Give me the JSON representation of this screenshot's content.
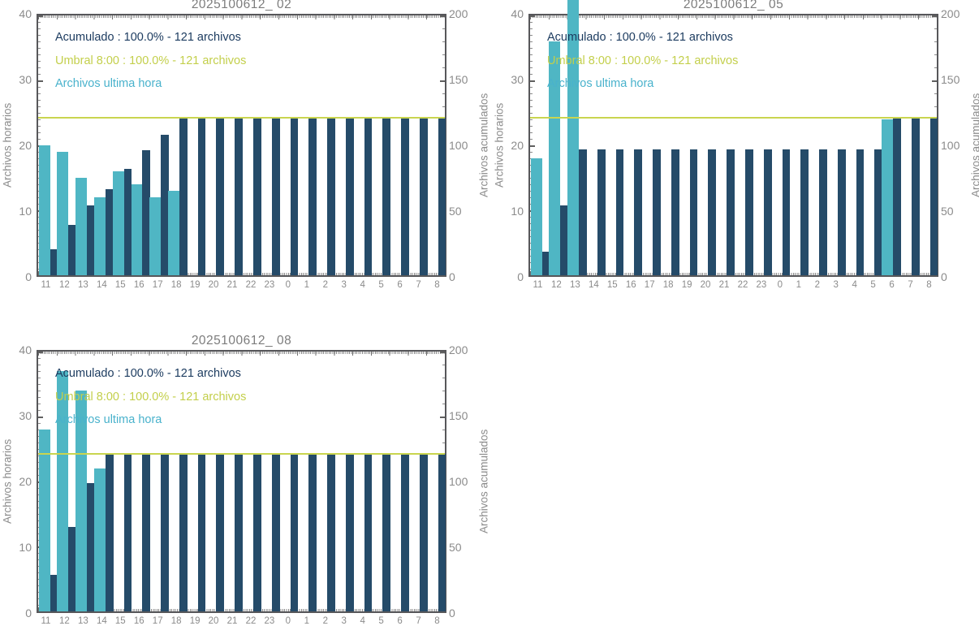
{
  "axis": {
    "x_categories": [
      "11",
      "12",
      "13",
      "14",
      "15",
      "16",
      "17",
      "18",
      "19",
      "20",
      "21",
      "22",
      "23",
      "0",
      "1",
      "2",
      "3",
      "4",
      "5",
      "6",
      "7",
      "8"
    ],
    "left_ticks": [
      "40",
      "30",
      "20",
      "10",
      "0"
    ],
    "right_ticks": [
      "200",
      "150",
      "100",
      "50",
      "0"
    ],
    "left_label": "Archivos horarios",
    "right_label": "Archivos acumulados"
  },
  "colors": {
    "hourly_bar": "#4fb6c4",
    "accumulated_bar": "#254b69",
    "threshold_line": "#c9d54f",
    "legend_acumulado_text": "#1d3c60",
    "legend_umbral_text": "#c3cf4b",
    "legend_ultima_text": "#49b2cc",
    "axis_text": "#8b8b8b",
    "title_text": "#7c7c7c"
  },
  "chart_data": [
    {
      "type": "bar",
      "title": "2025100612_ 02",
      "categories": [
        "11",
        "12",
        "13",
        "14",
        "15",
        "16",
        "17",
        "18",
        "19",
        "20",
        "21",
        "22",
        "23",
        "0",
        "1",
        "2",
        "3",
        "4",
        "5",
        "6",
        "7",
        "8"
      ],
      "ylabel_left": "Archivos horarios",
      "ylabel_right": "Archivos acumulados",
      "ylim_left": [
        0,
        40
      ],
      "ylim_right": [
        0,
        200
      ],
      "series": [
        {
          "name": "Archivos ultima hora",
          "axis": "left",
          "color": "#4fb6c4",
          "values": [
            20,
            19,
            15,
            12,
            16,
            14,
            12,
            13,
            0,
            0,
            0,
            0,
            0,
            0,
            0,
            0,
            0,
            0,
            0,
            0,
            0,
            0
          ]
        },
        {
          "name": "Acumulado",
          "axis": "right",
          "color": "#254b69",
          "values": [
            20,
            39,
            54,
            66,
            82,
            96,
            108,
            121,
            121,
            121,
            121,
            121,
            121,
            121,
            121,
            121,
            121,
            121,
            121,
            121,
            121,
            121
          ]
        }
      ],
      "threshold": {
        "name": "Umbral 8:00",
        "value": 121,
        "color": "#c9d54f"
      },
      "legend": [
        {
          "label": "Acumulado : 100.0% - 121 archivos",
          "color": "#1d3c60"
        },
        {
          "label": "Umbral 8:00 : 100.0% - 121 archivos",
          "color": "#c3cf4b"
        },
        {
          "label": "Archivos ultima hora",
          "color": "#49b2cc"
        }
      ]
    },
    {
      "type": "bar",
      "title": "2025100612_ 05",
      "categories": [
        "11",
        "12",
        "13",
        "14",
        "15",
        "16",
        "17",
        "18",
        "19",
        "20",
        "21",
        "22",
        "23",
        "0",
        "1",
        "2",
        "3",
        "4",
        "5",
        "6",
        "7",
        "8"
      ],
      "ylabel_left": "Archivos horarios",
      "ylabel_right": "Archivos acumulados",
      "ylim_left": [
        0,
        40
      ],
      "ylim_right": [
        0,
        200
      ],
      "series": [
        {
          "name": "Archivos ultima hora",
          "axis": "left",
          "color": "#4fb6c4",
          "values": [
            18,
            36,
            43,
            0,
            0,
            0,
            0,
            0,
            0,
            0,
            0,
            0,
            0,
            0,
            0,
            0,
            0,
            0,
            0,
            24,
            0,
            0
          ]
        },
        {
          "name": "Acumulado",
          "axis": "right",
          "color": "#254b69",
          "values": [
            18,
            54,
            97,
            97,
            97,
            97,
            97,
            97,
            97,
            97,
            97,
            97,
            97,
            97,
            97,
            97,
            97,
            97,
            97,
            121,
            121,
            121
          ]
        }
      ],
      "threshold": {
        "name": "Umbral 8:00",
        "value": 121,
        "color": "#c9d54f"
      },
      "legend": [
        {
          "label": "Acumulado : 100.0% - 121 archivos",
          "color": "#1d3c60"
        },
        {
          "label": "Umbral 8:00 : 100.0% - 121 archivos",
          "color": "#c3cf4b"
        },
        {
          "label": "Archivos ultima hora",
          "color": "#49b2cc"
        }
      ]
    },
    {
      "type": "bar",
      "title": "2025100612_ 08",
      "categories": [
        "11",
        "12",
        "13",
        "14",
        "15",
        "16",
        "17",
        "18",
        "19",
        "20",
        "21",
        "22",
        "23",
        "0",
        "1",
        "2",
        "3",
        "4",
        "5",
        "6",
        "7",
        "8"
      ],
      "ylabel_left": "Archivos horarios",
      "ylabel_right": "Archivos acumulados",
      "ylim_left": [
        0,
        40
      ],
      "ylim_right": [
        0,
        200
      ],
      "series": [
        {
          "name": "Archivos ultima hora",
          "axis": "left",
          "color": "#4fb6c4",
          "values": [
            28,
            37,
            34,
            22,
            0,
            0,
            0,
            0,
            0,
            0,
            0,
            0,
            0,
            0,
            0,
            0,
            0,
            0,
            0,
            0,
            0,
            0
          ]
        },
        {
          "name": "Acumulado",
          "axis": "right",
          "color": "#254b69",
          "values": [
            28,
            65,
            99,
            121,
            121,
            121,
            121,
            121,
            121,
            121,
            121,
            121,
            121,
            121,
            121,
            121,
            121,
            121,
            121,
            121,
            121,
            121
          ]
        }
      ],
      "threshold": {
        "name": "Umbral 8:00",
        "value": 121,
        "color": "#c9d54f"
      },
      "legend": [
        {
          "label": "Acumulado : 100.0% - 121 archivos",
          "color": "#1d3c60"
        },
        {
          "label": "Umbral 8:00 : 100.0% - 121 archivos",
          "color": "#c3cf4b"
        },
        {
          "label": "Archivos ultima hora",
          "color": "#49b2cc"
        }
      ]
    }
  ]
}
